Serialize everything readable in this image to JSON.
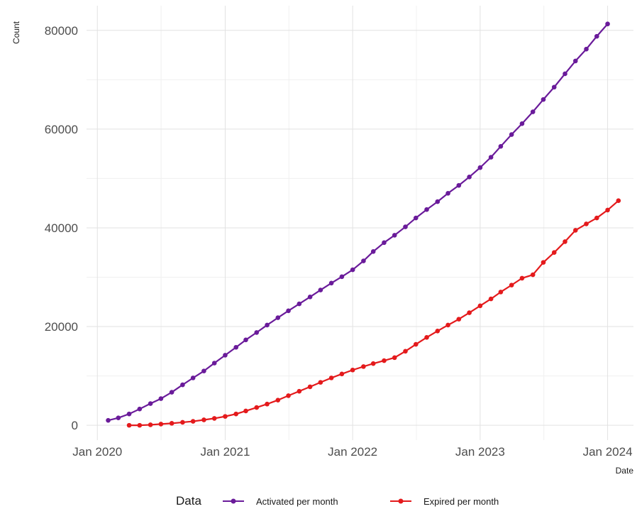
{
  "chart_data": {
    "type": "line",
    "title": "",
    "xlabel": "Date",
    "ylabel": "Count",
    "x_ticks": [
      "Jan 2020",
      "Jan 2021",
      "Jan 2022",
      "Jan 2023",
      "Jan 2024"
    ],
    "y_ticks": [
      "0",
      "20000",
      "40000",
      "60000",
      "80000"
    ],
    "xlim": [
      "2019-12-01",
      "2024-03-15"
    ],
    "ylim": [
      -3000,
      85000
    ],
    "grid": true,
    "legend": {
      "title": "Data",
      "placement": "bottom"
    },
    "series": [
      {
        "name": "Activated per month",
        "color": "#6a1b9a",
        "points": [
          [
            "2020-02-01",
            1000
          ],
          [
            "2020-03-01",
            1500
          ],
          [
            "2020-04-01",
            2300
          ],
          [
            "2020-05-01",
            3300
          ],
          [
            "2020-06-01",
            4400
          ],
          [
            "2020-07-01",
            5400
          ],
          [
            "2020-08-01",
            6700
          ],
          [
            "2020-09-01",
            8200
          ],
          [
            "2020-10-01",
            9600
          ],
          [
            "2020-11-01",
            11000
          ],
          [
            "2020-12-01",
            12600
          ],
          [
            "2021-01-01",
            14200
          ],
          [
            "2021-02-01",
            15800
          ],
          [
            "2021-03-01",
            17300
          ],
          [
            "2021-04-01",
            18800
          ],
          [
            "2021-05-01",
            20300
          ],
          [
            "2021-06-01",
            21800
          ],
          [
            "2021-07-01",
            23200
          ],
          [
            "2021-08-01",
            24600
          ],
          [
            "2021-09-01",
            26000
          ],
          [
            "2021-10-01",
            27400
          ],
          [
            "2021-11-01",
            28800
          ],
          [
            "2021-12-01",
            30100
          ],
          [
            "2022-01-01",
            31500
          ],
          [
            "2022-02-01",
            33300
          ],
          [
            "2022-03-01",
            35200
          ],
          [
            "2022-04-01",
            37000
          ],
          [
            "2022-05-01",
            38500
          ],
          [
            "2022-06-01",
            40200
          ],
          [
            "2022-07-01",
            42000
          ],
          [
            "2022-08-01",
            43700
          ],
          [
            "2022-09-01",
            45300
          ],
          [
            "2022-10-01",
            47000
          ],
          [
            "2022-11-01",
            48600
          ],
          [
            "2022-12-01",
            50300
          ],
          [
            "2023-01-01",
            52200
          ],
          [
            "2023-02-01",
            54300
          ],
          [
            "2023-03-01",
            56500
          ],
          [
            "2023-04-01",
            58900
          ],
          [
            "2023-05-01",
            61100
          ],
          [
            "2023-06-01",
            63500
          ],
          [
            "2023-07-01",
            66000
          ],
          [
            "2023-08-01",
            68500
          ],
          [
            "2023-09-01",
            71200
          ],
          [
            "2023-10-01",
            73800
          ],
          [
            "2023-11-01",
            76200
          ],
          [
            "2023-12-01",
            78800
          ],
          [
            "2024-01-01",
            81300
          ]
        ]
      },
      {
        "name": "Expired per month",
        "color": "#e41a1c",
        "points": [
          [
            "2020-04-01",
            0
          ],
          [
            "2020-05-01",
            0
          ],
          [
            "2020-06-01",
            100
          ],
          [
            "2020-07-01",
            250
          ],
          [
            "2020-08-01",
            400
          ],
          [
            "2020-09-01",
            600
          ],
          [
            "2020-10-01",
            800
          ],
          [
            "2020-11-01",
            1100
          ],
          [
            "2020-12-01",
            1400
          ],
          [
            "2021-01-01",
            1800
          ],
          [
            "2021-02-01",
            2300
          ],
          [
            "2021-03-01",
            2900
          ],
          [
            "2021-04-01",
            3600
          ],
          [
            "2021-05-01",
            4300
          ],
          [
            "2021-06-01",
            5100
          ],
          [
            "2021-07-01",
            6000
          ],
          [
            "2021-08-01",
            6900
          ],
          [
            "2021-09-01",
            7800
          ],
          [
            "2021-10-01",
            8700
          ],
          [
            "2021-11-01",
            9600
          ],
          [
            "2021-12-01",
            10400
          ],
          [
            "2022-01-01",
            11200
          ],
          [
            "2022-02-01",
            11900
          ],
          [
            "2022-03-01",
            12500
          ],
          [
            "2022-04-01",
            13100
          ],
          [
            "2022-05-01",
            13700
          ],
          [
            "2022-06-01",
            15000
          ],
          [
            "2022-07-01",
            16400
          ],
          [
            "2022-08-01",
            17800
          ],
          [
            "2022-09-01",
            19100
          ],
          [
            "2022-10-01",
            20300
          ],
          [
            "2022-11-01",
            21500
          ],
          [
            "2022-12-01",
            22800
          ],
          [
            "2023-01-01",
            24200
          ],
          [
            "2023-02-01",
            25600
          ],
          [
            "2023-03-01",
            27000
          ],
          [
            "2023-04-01",
            28400
          ],
          [
            "2023-05-01",
            29800
          ],
          [
            "2023-06-01",
            30500
          ],
          [
            "2023-07-01",
            33000
          ],
          [
            "2023-08-01",
            35000
          ],
          [
            "2023-09-01",
            37200
          ],
          [
            "2023-10-01",
            39500
          ],
          [
            "2023-11-01",
            40800
          ],
          [
            "2023-12-01",
            42000
          ],
          [
            "2024-01-01",
            43600
          ],
          [
            "2024-02-01",
            45500
          ]
        ]
      }
    ]
  }
}
